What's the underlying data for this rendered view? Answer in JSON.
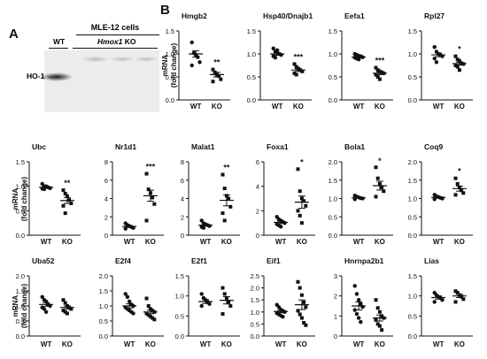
{
  "panel_labels": {
    "a": "A",
    "b": "B"
  },
  "blot": {
    "title": "MLE-12 cells",
    "lane_wt": "WT",
    "lane_ko_gene": "Hmox1",
    "lane_ko_suffix": " KO",
    "band_label": "HO-1"
  },
  "y_axis_label_line1": "mRNA",
  "y_axis_label_line2": "(fold change)",
  "chart_data": [
    {
      "type": "scatter",
      "title": "Hmgb2",
      "categories": [
        "WT",
        "KO"
      ],
      "ylim": [
        0,
        1.5
      ],
      "yticks": [
        "0.0",
        "0.5",
        "1.0",
        "1.5"
      ],
      "significance": "**",
      "series": [
        {
          "name": "WT",
          "values": [
            1.25,
            1.02,
            0.98,
            0.93,
            0.82,
            0.75
          ],
          "mean": 1.0,
          "sem": 0.07
        },
        {
          "name": "KO",
          "values": [
            0.66,
            0.6,
            0.55,
            0.52,
            0.45,
            0.4
          ],
          "mean": 0.55,
          "sem": 0.05
        }
      ]
    },
    {
      "type": "scatter",
      "title": "Hsp40/Dnajb1",
      "categories": [
        "WT",
        "KO"
      ],
      "ylim": [
        0,
        1.5
      ],
      "yticks": [
        "0.0",
        "0.5",
        "1.0",
        "1.5"
      ],
      "significance": "***",
      "series": [
        {
          "name": "WT",
          "values": [
            1.12,
            1.05,
            1.02,
            1.0,
            0.98,
            0.95,
            0.92,
            1.08
          ],
          "mean": 1.0,
          "sem": 0.03
        },
        {
          "name": "KO",
          "values": [
            0.78,
            0.72,
            0.68,
            0.65,
            0.62,
            0.58,
            0.55,
            0.68
          ],
          "mean": 0.65,
          "sem": 0.03
        }
      ]
    },
    {
      "type": "scatter",
      "title": "Eefa1",
      "categories": [
        "WT",
        "KO"
      ],
      "ylim": [
        0,
        1.5
      ],
      "yticks": [
        "0.0",
        "0.5",
        "1.0",
        "1.5"
      ],
      "significance": "***",
      "series": [
        {
          "name": "WT",
          "values": [
            1.0,
            0.98,
            0.96,
            0.95,
            0.93,
            0.92,
            0.9,
            0.88
          ],
          "mean": 0.93,
          "sem": 0.02
        },
        {
          "name": "KO",
          "values": [
            0.7,
            0.65,
            0.62,
            0.6,
            0.58,
            0.55,
            0.5,
            0.45
          ],
          "mean": 0.58,
          "sem": 0.03
        }
      ]
    },
    {
      "type": "scatter",
      "title": "Rpl27",
      "categories": [
        "WT",
        "KO"
      ],
      "ylim": [
        0,
        1.5
      ],
      "yticks": [
        "0.0",
        "0.5",
        "1.0",
        "1.5"
      ],
      "significance": "*",
      "series": [
        {
          "name": "WT",
          "values": [
            1.15,
            1.05,
            1.0,
            0.98,
            0.95,
            0.9,
            0.82
          ],
          "mean": 0.98,
          "sem": 0.04
        },
        {
          "name": "KO",
          "values": [
            0.95,
            0.88,
            0.85,
            0.8,
            0.78,
            0.75,
            0.72,
            0.65
          ],
          "mean": 0.79,
          "sem": 0.03
        }
      ]
    },
    {
      "type": "scatter",
      "title": "Ubc",
      "categories": [
        "WT",
        "KO"
      ],
      "ylim": [
        0,
        1.5
      ],
      "yticks": [
        "0.0",
        "0.5",
        "1.0",
        "1.5"
      ],
      "significance": "**",
      "series": [
        {
          "name": "WT",
          "values": [
            1.05,
            1.0,
            1.0,
            0.98,
            0.96,
            0.95,
            0.94
          ],
          "mean": 0.98,
          "sem": 0.02
        },
        {
          "name": "KO",
          "values": [
            0.92,
            0.85,
            0.8,
            0.72,
            0.65,
            0.6,
            0.45
          ],
          "mean": 0.71,
          "sem": 0.06
        }
      ]
    },
    {
      "type": "scatter",
      "title": "Nr1d1",
      "categories": [
        "WT",
        "KO"
      ],
      "ylim": [
        0,
        8
      ],
      "yticks": [
        "0",
        "2",
        "4",
        "6",
        "8"
      ],
      "significance": "***",
      "series": [
        {
          "name": "WT",
          "values": [
            1.3,
            1.1,
            1.0,
            0.9,
            0.8,
            0.7
          ],
          "mean": 0.95,
          "sem": 0.1
        },
        {
          "name": "KO",
          "values": [
            6.7,
            5.0,
            4.6,
            4.1,
            3.4,
            1.6
          ],
          "mean": 4.3,
          "sem": 0.6
        }
      ]
    },
    {
      "type": "scatter",
      "title": "Malat1",
      "categories": [
        "WT",
        "KO"
      ],
      "ylim": [
        0,
        8
      ],
      "yticks": [
        "0",
        "2",
        "4",
        "6",
        "8"
      ],
      "significance": "**",
      "series": [
        {
          "name": "WT",
          "values": [
            1.6,
            1.3,
            1.2,
            1.1,
            1.0,
            0.9,
            0.8
          ],
          "mean": 1.1,
          "sem": 0.1
        },
        {
          "name": "KO",
          "values": [
            6.6,
            5.1,
            4.3,
            4.0,
            3.1,
            2.4,
            1.6
          ],
          "mean": 3.8,
          "sem": 0.6
        }
      ]
    },
    {
      "type": "scatter",
      "title": "Foxa1",
      "categories": [
        "WT",
        "KO"
      ],
      "ylim": [
        0,
        6
      ],
      "yticks": [
        "0",
        "2",
        "4",
        "6"
      ],
      "significance": "*",
      "series": [
        {
          "name": "WT",
          "values": [
            1.5,
            1.3,
            1.2,
            1.1,
            1.0,
            0.9,
            0.8,
            0.7
          ],
          "mean": 1.05,
          "sem": 0.1
        },
        {
          "name": "KO",
          "values": [
            5.4,
            3.6,
            3.0,
            2.8,
            2.4,
            2.0,
            1.6,
            1.0
          ],
          "mean": 2.7,
          "sem": 0.5
        }
      ]
    },
    {
      "type": "scatter",
      "title": "Bola1",
      "categories": [
        "WT",
        "KO"
      ],
      "ylim": [
        0,
        2
      ],
      "yticks": [
        "0.0",
        "0.5",
        "1.0",
        "1.5",
        "2.0"
      ],
      "significance": "*",
      "series": [
        {
          "name": "WT",
          "values": [
            1.08,
            1.05,
            1.03,
            1.01,
            1.0,
            0.98
          ],
          "mean": 1.02,
          "sem": 0.01
        },
        {
          "name": "KO",
          "values": [
            1.85,
            1.55,
            1.4,
            1.3,
            1.2,
            1.05
          ],
          "mean": 1.35,
          "sem": 0.12
        }
      ]
    },
    {
      "type": "scatter",
      "title": "Coq9",
      "categories": [
        "WT",
        "KO"
      ],
      "ylim": [
        0,
        2
      ],
      "yticks": [
        "0.0",
        "0.5",
        "1.0",
        "1.5",
        "2.0"
      ],
      "significance": "*",
      "series": [
        {
          "name": "WT",
          "values": [
            1.1,
            1.06,
            1.04,
            1.02,
            1.0,
            0.98
          ],
          "mean": 1.03,
          "sem": 0.02
        },
        {
          "name": "KO",
          "values": [
            1.55,
            1.4,
            1.3,
            1.22,
            1.15,
            1.1
          ],
          "mean": 1.27,
          "sem": 0.07
        }
      ]
    },
    {
      "type": "scatter",
      "title": "Uba52",
      "categories": [
        "WT",
        "KO"
      ],
      "ylim": [
        0,
        2
      ],
      "yticks": [
        "0.0",
        "0.5",
        "1.0",
        "1.5",
        "2.0"
      ],
      "significance": "",
      "series": [
        {
          "name": "WT",
          "values": [
            1.3,
            1.2,
            1.15,
            1.05,
            1.0,
            0.95,
            0.9,
            0.8
          ],
          "mean": 1.05,
          "sem": 0.06
        },
        {
          "name": "KO",
          "values": [
            1.2,
            1.1,
            1.0,
            0.95,
            0.9,
            0.85,
            0.8,
            0.75
          ],
          "mean": 0.95,
          "sem": 0.05
        }
      ]
    },
    {
      "type": "scatter",
      "title": "E2f4",
      "categories": [
        "WT",
        "KO"
      ],
      "ylim": [
        0,
        2
      ],
      "yticks": [
        "0.0",
        "0.5",
        "1.0",
        "1.5",
        "2.0"
      ],
      "significance": "",
      "series": [
        {
          "name": "WT",
          "values": [
            1.4,
            1.3,
            1.15,
            1.05,
            1.0,
            0.95,
            0.9,
            0.85,
            0.8,
            0.75
          ],
          "mean": 1.0,
          "sem": 0.07
        },
        {
          "name": "KO",
          "values": [
            1.25,
            1.0,
            0.9,
            0.85,
            0.8,
            0.75,
            0.7,
            0.65,
            0.6,
            0.55
          ],
          "mean": 0.8,
          "sem": 0.06
        }
      ]
    },
    {
      "type": "scatter",
      "title": "E2f1",
      "categories": [
        "WT",
        "KO"
      ],
      "ylim": [
        0,
        1.5
      ],
      "yticks": [
        "0.0",
        "0.5",
        "1.0",
        "1.5"
      ],
      "significance": "",
      "series": [
        {
          "name": "WT",
          "values": [
            1.05,
            0.95,
            0.9,
            0.85,
            0.8,
            0.75
          ],
          "mean": 0.86,
          "sem": 0.05
        },
        {
          "name": "KO",
          "values": [
            1.2,
            1.05,
            0.95,
            0.85,
            0.75,
            0.55
          ],
          "mean": 0.89,
          "sem": 0.09
        }
      ]
    },
    {
      "type": "scatter",
      "title": "Eif1",
      "categories": [
        "WT",
        "KO"
      ],
      "ylim": [
        0,
        2.5
      ],
      "yticks": [
        "0.0",
        "0.5",
        "1.0",
        "1.5",
        "2.0",
        "2.5"
      ],
      "significance": "",
      "series": [
        {
          "name": "WT",
          "values": [
            1.3,
            1.2,
            1.1,
            1.05,
            1.0,
            0.95,
            0.9,
            0.85,
            0.8
          ],
          "mean": 1.02,
          "sem": 0.05
        },
        {
          "name": "KO",
          "values": [
            2.25,
            2.0,
            1.7,
            1.4,
            1.2,
            1.05,
            0.9,
            0.75,
            0.55,
            0.45
          ],
          "mean": 1.3,
          "sem": 0.2
        }
      ]
    },
    {
      "type": "scatter",
      "title": "Hnrnpa2b1",
      "categories": [
        "WT",
        "KO"
      ],
      "ylim": [
        0,
        3
      ],
      "yticks": [
        "0",
        "1",
        "2",
        "3"
      ],
      "significance": "",
      "series": [
        {
          "name": "WT",
          "values": [
            2.5,
            2.1,
            1.8,
            1.6,
            1.45,
            1.3,
            1.1,
            0.9,
            0.7
          ],
          "mean": 1.5,
          "sem": 0.2
        },
        {
          "name": "KO",
          "values": [
            1.8,
            1.4,
            1.2,
            1.0,
            0.9,
            0.8,
            0.6,
            0.5,
            0.3
          ],
          "mean": 0.9,
          "sem": 0.15
        }
      ]
    },
    {
      "type": "scatter",
      "title": "Lias",
      "categories": [
        "WT",
        "KO"
      ],
      "ylim": [
        0,
        1.5
      ],
      "yticks": [
        "0.0",
        "0.5",
        "1.0",
        "1.5"
      ],
      "significance": "",
      "series": [
        {
          "name": "WT",
          "values": [
            1.08,
            1.02,
            0.98,
            0.95,
            0.9,
            0.85
          ],
          "mean": 0.96,
          "sem": 0.04
        },
        {
          "name": "KO",
          "values": [
            1.12,
            1.08,
            1.02,
            0.98,
            0.92,
            0.85
          ],
          "mean": 1.0,
          "sem": 0.04
        }
      ]
    }
  ]
}
